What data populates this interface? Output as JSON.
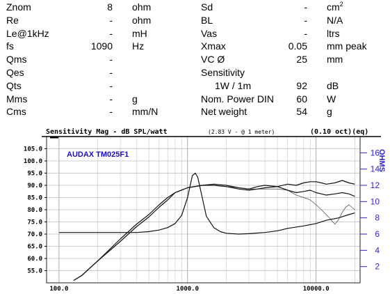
{
  "specs": {
    "left": [
      {
        "label": "Znom",
        "value": "8",
        "unit": "ohm"
      },
      {
        "label": "Re",
        "value": "-",
        "unit": "ohm"
      },
      {
        "label": "Le@1kHz",
        "value": "-",
        "unit": "mH"
      },
      {
        "label": "fs",
        "value": "1090",
        "unit": "Hz"
      },
      {
        "label": "Qms",
        "value": "-",
        "unit": ""
      },
      {
        "label": "Qes",
        "value": "-",
        "unit": ""
      },
      {
        "label": "Qts",
        "value": "-",
        "unit": ""
      },
      {
        "label": "Mms",
        "value": "-",
        "unit": "g"
      },
      {
        "label": "Cms",
        "value": "-",
        "unit": "mm/N"
      }
    ],
    "right": [
      {
        "label": "Sd",
        "value": "-",
        "unit": "cm",
        "unit_sup": "2"
      },
      {
        "label": "BL",
        "value": "-",
        "unit": "N/A"
      },
      {
        "label": "Vas",
        "value": "-",
        "unit": "ltrs"
      },
      {
        "label": "Xmax",
        "value": "0.05",
        "unit": "mm peak"
      },
      {
        "label": "VC Ø",
        "value": "25",
        "unit": "mm"
      },
      {
        "label": "Sensitivity",
        "value": "",
        "unit": ""
      },
      {
        "label": "1W / 1m",
        "value": "92",
        "unit": "dB"
      },
      {
        "label": "Nom. Power DIN",
        "value": "60",
        "unit": "W"
      },
      {
        "label": "Net weight",
        "value": "54",
        "unit": "g"
      }
    ]
  },
  "chart_data": {
    "type": "line",
    "title": "Sensitivity Mag - dB SPL/watt",
    "subtitle": "(2.83 V - @ 1 meter)",
    "smoothing": "(0.10 oct)(eq)",
    "model_label": "AUDAX TM025F1",
    "y_right_label": "OHMS",
    "xscale": "log",
    "xlim": [
      80,
      22000
    ],
    "ylim_left": [
      50,
      110
    ],
    "ylim_right": [
      0,
      18
    ],
    "x_ticks": [
      "100.0",
      "1000.0",
      "10000.0"
    ],
    "x_tick_values": [
      100,
      1000,
      10000
    ],
    "y_ticks_left": [
      "105.0",
      "100.0",
      "95.0",
      "90.0",
      "85.0",
      "80.0",
      "75.0",
      "70.0",
      "65.0",
      "60.0",
      "55.0"
    ],
    "y_tick_values_left": [
      105,
      100,
      95,
      90,
      85,
      80,
      75,
      70,
      65,
      60,
      55
    ],
    "y_ticks_right": [
      "16",
      "14",
      "12",
      "10",
      "8",
      "6",
      "4",
      "2"
    ],
    "y_tick_values_right": [
      16,
      14,
      12,
      10,
      8,
      6,
      4,
      2
    ],
    "colors": {
      "curve": "#111111",
      "right_axis": "#2f23c8",
      "model_label": "#1a10c0"
    },
    "series": [
      {
        "axis": "left",
        "x": [
          130,
          150,
          200,
          300,
          400,
          500,
          600,
          700,
          800,
          1000,
          1300,
          1600,
          2000,
          2500,
          3000,
          3500,
          4000,
          5000,
          6000,
          7000,
          8000,
          9000,
          10000,
          11000,
          12000,
          14000,
          16000,
          18000,
          20000
        ],
        "values": [
          51,
          53,
          59,
          68,
          74,
          78,
          82,
          85,
          87,
          89,
          90,
          90.5,
          90,
          89,
          88.5,
          89.5,
          90,
          89.5,
          90.5,
          90,
          91,
          91.5,
          91.5,
          91,
          90.5,
          91,
          92,
          91,
          90.5
        ]
      },
      {
        "axis": "left",
        "x": [
          130,
          150,
          200,
          300,
          400,
          500,
          600,
          700,
          800,
          1000,
          1300,
          1600,
          2000,
          2500,
          3000,
          3500,
          4000,
          5000,
          6000,
          7000,
          8000,
          9000,
          10000,
          11000,
          12000,
          14000,
          16000,
          18000,
          20000
        ],
        "values": [
          51,
          53,
          59,
          67,
          73,
          77,
          81,
          84,
          87,
          89,
          90,
          90,
          89.5,
          88.5,
          88,
          88.5,
          89,
          89.5,
          88,
          87,
          87.5,
          88,
          87,
          86.5,
          86,
          86.5,
          87,
          86.5,
          85.5
        ]
      },
      {
        "axis": "left",
        "x": [
          1000,
          1300,
          1600,
          2000,
          2500,
          3000,
          4000,
          5000,
          6000,
          7000,
          8000,
          9000,
          10000,
          11000,
          12000,
          13000,
          14000,
          15000,
          16000,
          17000,
          18000,
          19000,
          20000
        ],
        "values": [
          89,
          90,
          90,
          89.5,
          89,
          88.5,
          88.5,
          88.5,
          88,
          86,
          85,
          84,
          82,
          80,
          78,
          76,
          74,
          76,
          79,
          81,
          82,
          81,
          80
        ]
      },
      {
        "axis": "right",
        "x": [
          100,
          150,
          200,
          300,
          400,
          500,
          600,
          700,
          800,
          900,
          1000,
          1090,
          1150,
          1200,
          1300,
          1400,
          1600,
          1800,
          2000,
          2500,
          3000,
          4000,
          5000,
          6000,
          8000,
          10000,
          12000,
          15000,
          18000,
          20000
        ],
        "values": [
          6.2,
          6.2,
          6.2,
          6.2,
          6.2,
          6.3,
          6.5,
          6.8,
          7.3,
          8.3,
          10.5,
          13.2,
          13.5,
          13,
          10.5,
          8.2,
          6.8,
          6.3,
          6.1,
          6.0,
          6.05,
          6.2,
          6.4,
          6.7,
          7.0,
          7.3,
          7.7,
          8.0,
          8.4,
          8.6
        ]
      }
    ]
  }
}
